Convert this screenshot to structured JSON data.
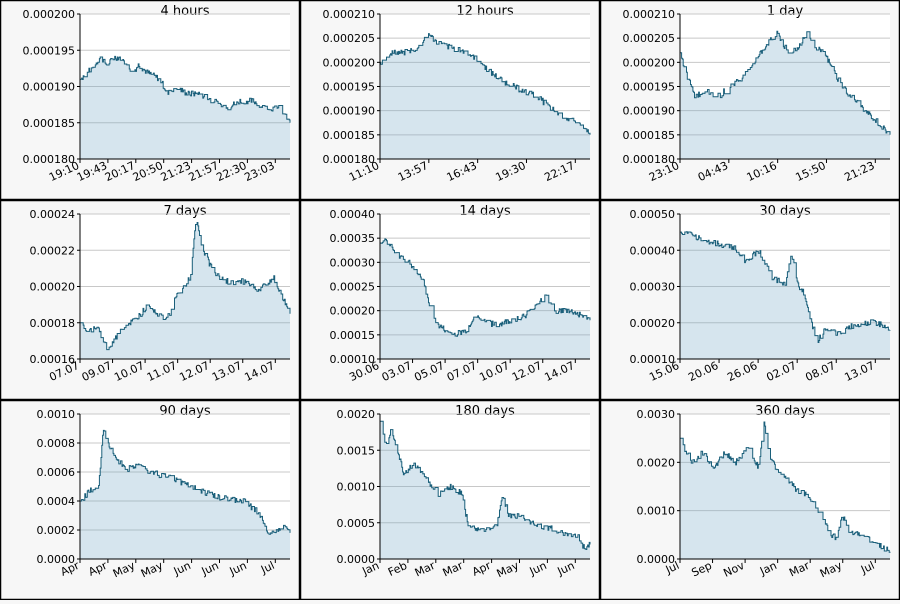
{
  "chart_data": [
    {
      "type": "area",
      "title": "4 hours",
      "ylim": [
        0.00018,
        0.0002
      ],
      "y_ticks": [
        "0.000180",
        "0.000185",
        "0.000190",
        "0.000195",
        "0.000200"
      ],
      "x_ticks": [
        "19:10",
        "19:43",
        "20:17",
        "20:50",
        "21:23",
        "21:57",
        "22:30",
        "23:03"
      ],
      "x_range": [
        0,
        7.9
      ],
      "x": [
        0,
        0.3,
        0.5,
        0.8,
        1,
        1.3,
        1.5,
        2,
        2.2,
        2.5,
        3,
        3.3,
        3.6,
        4,
        4.5,
        5,
        5.5,
        6,
        6.5,
        7,
        7.5,
        7.9
      ],
      "values": [
        0.000191,
        0.000192,
        0.000193,
        0.000194,
        0.000193,
        0.000194,
        0.000194,
        0.000192,
        0.000193,
        0.000192,
        0.000191,
        0.000189,
        0.00019,
        0.000189,
        0.000189,
        0.000188,
        0.000187,
        0.000188,
        0.000188,
        0.000187,
        0.000187,
        0.000185
      ]
    },
    {
      "type": "area",
      "title": "12 hours",
      "ylim": [
        0.00018,
        0.00021
      ],
      "y_ticks": [
        "0.000180",
        "0.000185",
        "0.000190",
        "0.000195",
        "0.000200",
        "0.000205",
        "0.000210"
      ],
      "x_ticks": [
        "11:10",
        "13:57",
        "16:43",
        "19:30",
        "22:17"
      ],
      "x_range": [
        0,
        4.4
      ],
      "x": [
        0,
        0.2,
        0.5,
        0.8,
        1,
        1.2,
        1.5,
        1.8,
        2,
        2.3,
        2.6,
        2.8,
        3,
        3.3,
        3.5,
        3.8,
        4,
        4.2,
        4.4
      ],
      "values": [
        0.0002,
        0.000202,
        0.000202,
        0.000203,
        0.000206,
        0.000204,
        0.000203,
        0.000202,
        0.000201,
        0.000198,
        0.000196,
        0.000195,
        0.000194,
        0.000193,
        0.000191,
        0.000189,
        0.000188,
        0.000187,
        0.000185
      ]
    },
    {
      "type": "area",
      "title": "1 day",
      "ylim": [
        0.00018,
        0.00021
      ],
      "y_ticks": [
        "0.000180",
        "0.000185",
        "0.000190",
        "0.000195",
        "0.000200",
        "0.000205",
        "0.000210"
      ],
      "x_ticks": [
        "23:10",
        "04:43",
        "10:16",
        "15:50",
        "21:23"
      ],
      "x_range": [
        0,
        4.3
      ],
      "x": [
        0,
        0.15,
        0.3,
        0.5,
        0.8,
        1,
        1.3,
        1.5,
        1.8,
        2,
        2.2,
        2.4,
        2.6,
        2.8,
        3,
        3.2,
        3.4,
        3.6,
        3.8,
        4,
        4.3
      ],
      "values": [
        0.000202,
        0.000197,
        0.000193,
        0.000194,
        0.000193,
        0.000195,
        0.000197,
        0.0002,
        0.000204,
        0.000206,
        0.000202,
        0.000203,
        0.000206,
        0.000203,
        0.000201,
        0.000197,
        0.000194,
        0.000192,
        0.00019,
        0.000188,
        0.000185
      ]
    },
    {
      "type": "area",
      "title": "7 days",
      "ylim": [
        0.00016,
        0.00024
      ],
      "y_ticks": [
        "0.00016",
        "0.00018",
        "0.00020",
        "0.00022",
        "0.00024"
      ],
      "x_ticks": [
        "07.07",
        "09.07",
        "10.07",
        "11.07",
        "12.07",
        "13.07",
        "14.07"
      ],
      "x_range": [
        0,
        7.6
      ],
      "x": [
        0,
        0.3,
        0.6,
        1,
        1.3,
        1.6,
        2,
        2.5,
        3,
        3.2,
        3.5,
        4,
        4.2,
        4.4,
        4.7,
        5,
        5.5,
        6,
        6.5,
        7,
        7.3,
        7.6
      ],
      "values": [
        0.00018,
        0.000175,
        0.000178,
        0.000165,
        0.000172,
        0.000178,
        0.000182,
        0.00019,
        0.000182,
        0.000184,
        0.000195,
        0.000205,
        0.000238,
        0.000222,
        0.000212,
        0.000205,
        0.000202,
        0.000203,
        0.000198,
        0.000205,
        0.000195,
        0.000185
      ]
    },
    {
      "type": "area",
      "title": "14 days",
      "ylim": [
        0.0001,
        0.0004
      ],
      "y_ticks": [
        "0.00010",
        "0.00015",
        "0.00020",
        "0.00025",
        "0.00030",
        "0.00035",
        "0.00040"
      ],
      "x_ticks": [
        "30.06",
        "03.07",
        "05.07",
        "07.07",
        "10.07",
        "12.07",
        "14.07"
      ],
      "x_range": [
        0,
        14.5
      ],
      "x": [
        0,
        0.3,
        1,
        2,
        3,
        3.5,
        4,
        5,
        6,
        6.5,
        7,
        8,
        9,
        10,
        11,
        11.5,
        12,
        13,
        14,
        14.5
      ],
      "values": [
        0.00034,
        0.00035,
        0.00032,
        0.0003,
        0.00026,
        0.0002,
        0.00017,
        0.00015,
        0.00016,
        0.00019,
        0.00018,
        0.00017,
        0.00018,
        0.00019,
        0.00022,
        0.00023,
        0.0002,
        0.0002,
        0.00019,
        0.00018
      ]
    },
    {
      "type": "area",
      "title": "30 days",
      "ylim": [
        0.0001,
        0.0005
      ],
      "y_ticks": [
        "0.00010",
        "0.00020",
        "0.00030",
        "0.00040",
        "0.00050"
      ],
      "x_ticks": [
        "15.06",
        "20.06",
        "26.06",
        "02.07",
        "08.07",
        "13.07"
      ],
      "x_range": [
        0,
        32
      ],
      "x": [
        0,
        2,
        5,
        8,
        10,
        12,
        14,
        16,
        17,
        18,
        19,
        20,
        21,
        22,
        24,
        26,
        28,
        30,
        32
      ],
      "values": [
        0.00045,
        0.00044,
        0.00042,
        0.00041,
        0.00037,
        0.0004,
        0.00032,
        0.00031,
        0.00039,
        0.0003,
        0.00028,
        0.0002,
        0.00015,
        0.00018,
        0.00017,
        0.00019,
        0.0002,
        0.0002,
        0.00018
      ]
    },
    {
      "type": "area",
      "title": "90 days",
      "ylim": [
        0,
        0.001
      ],
      "y_ticks": [
        "0.0000",
        "0.0002",
        "0.0004",
        "0.0006",
        "0.0008",
        "0.0010"
      ],
      "x_ticks": [
        "Apr",
        "Apr",
        "May",
        "May",
        "Jun",
        "Jun",
        "Jun",
        "Jul"
      ],
      "x_range": [
        0,
        90
      ],
      "x": [
        0,
        5,
        8,
        10,
        12,
        15,
        20,
        25,
        30,
        40,
        50,
        60,
        70,
        75,
        78,
        80,
        84,
        87,
        90
      ],
      "values": [
        0.0004,
        0.00048,
        0.0005,
        0.0009,
        0.0008,
        0.0007,
        0.00062,
        0.00065,
        0.0006,
        0.00055,
        0.00048,
        0.00042,
        0.0004,
        0.00034,
        0.00028,
        0.00018,
        0.0002,
        0.00022,
        0.00018
      ]
    },
    {
      "type": "area",
      "title": "180 days",
      "ylim": [
        0,
        0.002
      ],
      "y_ticks": [
        "0.0000",
        "0.0005",
        "0.0010",
        "0.0015",
        "0.0020"
      ],
      "x_ticks": [
        "Jan",
        "Feb",
        "Mar",
        "Mar",
        "Apr",
        "May",
        "Jun",
        "Jun"
      ],
      "x_range": [
        0,
        180
      ],
      "x": [
        0,
        5,
        10,
        15,
        20,
        30,
        40,
        50,
        60,
        70,
        75,
        80,
        90,
        100,
        105,
        110,
        120,
        130,
        140,
        150,
        160,
        170,
        175,
        180
      ],
      "values": [
        0.0019,
        0.0016,
        0.0018,
        0.0015,
        0.0012,
        0.0013,
        0.0011,
        0.0009,
        0.001,
        0.0009,
        0.0005,
        0.00042,
        0.0004,
        0.00045,
        0.0009,
        0.0006,
        0.0006,
        0.0005,
        0.00045,
        0.0004,
        0.00035,
        0.0003,
        0.00015,
        0.0002
      ]
    },
    {
      "type": "area",
      "title": "360 days",
      "ylim": [
        0,
        0.003
      ],
      "y_ticks": [
        "0.0000",
        "0.0010",
        "0.0020",
        "0.0030"
      ],
      "x_ticks": [
        "Jul",
        "Sep",
        "Nov",
        "Jan",
        "Mar",
        "May",
        "Jul"
      ],
      "x_range": [
        0,
        375
      ],
      "x": [
        0,
        20,
        40,
        60,
        80,
        100,
        120,
        140,
        150,
        160,
        175,
        190,
        210,
        230,
        250,
        270,
        280,
        290,
        300,
        320,
        340,
        360,
        375
      ],
      "values": [
        0.0025,
        0.002,
        0.0022,
        0.0019,
        0.0022,
        0.002,
        0.0023,
        0.0019,
        0.0028,
        0.0021,
        0.0018,
        0.0017,
        0.0014,
        0.0013,
        0.0009,
        0.0005,
        0.0004,
        0.0009,
        0.0006,
        0.0005,
        0.0004,
        0.00025,
        0.00015
      ]
    }
  ]
}
